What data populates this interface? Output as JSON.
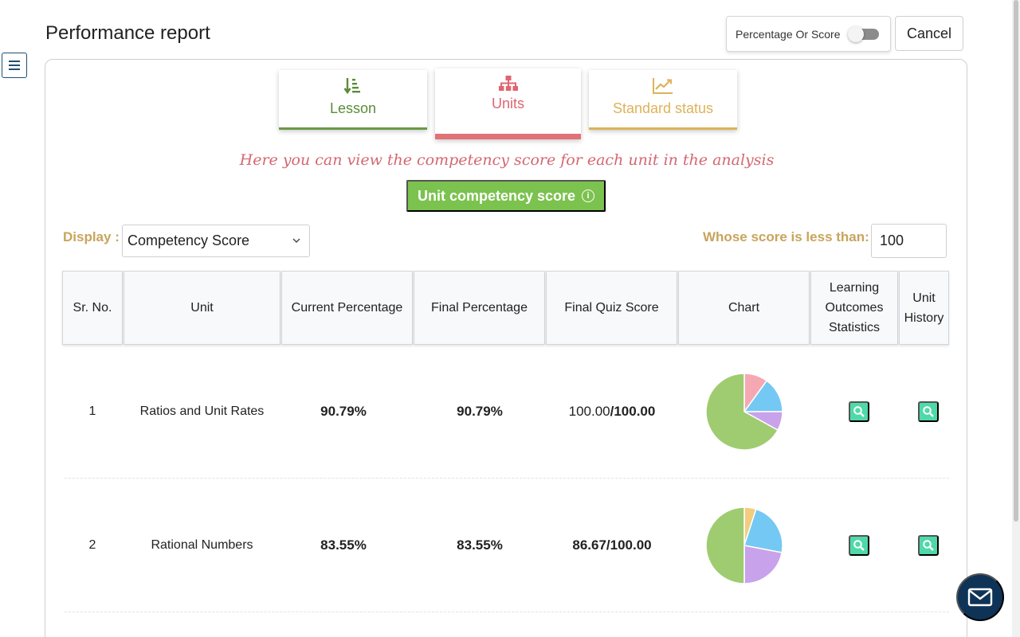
{
  "page": {
    "title": "Performance report"
  },
  "toolbar": {
    "toggle_label": "Percentage Or Score",
    "toggle_on": false,
    "cancel_label": "Cancel"
  },
  "tabs": [
    {
      "label": "Lesson",
      "icon": "sort-down-icon",
      "color": "#5a8c38"
    },
    {
      "label": "Units",
      "icon": "hierarchy-icon",
      "color": "#e06570",
      "active": true
    },
    {
      "label": "Standard status",
      "icon": "trend-chart-icon",
      "color": "#dcb35a"
    }
  ],
  "hint": "Here you can view the competency score for each unit in the analysis",
  "score_button": {
    "label": "Unit competency score",
    "info_glyph": "i"
  },
  "filters": {
    "display_label": "Display :",
    "display_value": "Competency Score",
    "less_label": "Whose score is less than:",
    "less_value": "100"
  },
  "table": {
    "headers": [
      "Sr. No.",
      "Unit",
      "Current Percentage",
      "Final Percentage",
      "Final Quiz Score",
      "Chart",
      "Learning Outcomes Statistics",
      "Unit History"
    ],
    "rows": [
      {
        "sr": "1",
        "unit": "Ratios and Unit Rates",
        "current": "90.79%",
        "final": "90.79%",
        "quiz_score": "100.00",
        "quiz_total": "/100.00",
        "pie": [
          {
            "value": 10,
            "color": "#f6a8b2"
          },
          {
            "value": 15,
            "color": "#74c8f4"
          },
          {
            "value": 8,
            "color": "#c9a2ec"
          },
          {
            "value": 67,
            "color": "#9fcc70"
          }
        ]
      },
      {
        "sr": "2",
        "unit": "Rational Numbers",
        "current": "83.55%",
        "final": "83.55%",
        "quiz_score": "86.67",
        "quiz_total": "/100.00",
        "pie": [
          {
            "value": 5,
            "color": "#f2cd7e"
          },
          {
            "value": 23,
            "color": "#74c8f4"
          },
          {
            "value": 22,
            "color": "#c9a2ec"
          },
          {
            "value": 50,
            "color": "#9fcc70"
          }
        ]
      }
    ]
  },
  "chat": {
    "icon": "envelope-icon"
  }
}
